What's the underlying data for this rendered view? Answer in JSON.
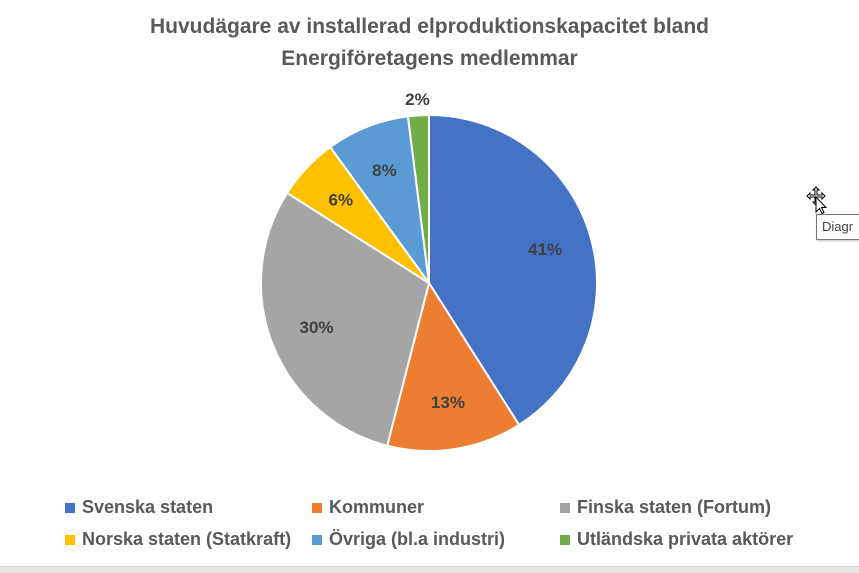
{
  "chart_data": {
    "type": "pie",
    "title_line1": "Huvudägare av installerad elproduktionskapacitet bland",
    "title_line2": "Energiföretagens medlemmar",
    "start_angle_deg": 0,
    "direction": "clockwise",
    "slices": [
      {
        "label": "Svenska staten",
        "value": 41,
        "display": "41%",
        "color": "#4472C4"
      },
      {
        "label": "Kommuner",
        "value": 13,
        "display": "13%",
        "color": "#ED7D31"
      },
      {
        "label": "Finska staten (Fortum)",
        "value": 30,
        "display": "30%",
        "color": "#A5A5A5"
      },
      {
        "label": "Norska staten (Statkraft)",
        "value": 6,
        "display": "6%",
        "color": "#FFC000"
      },
      {
        "label": "Övriga (bl.a industri)",
        "value": 8,
        "display": "8%",
        "color": "#5B9BD5"
      },
      {
        "label": "Utländska privata aktörer",
        "value": 2,
        "display": "2%",
        "color": "#70AD47"
      }
    ],
    "legend_position": "bottom"
  },
  "tooltip": {
    "text": "Diagr"
  },
  "icons": {
    "cursor": "move-cursor-icon"
  }
}
